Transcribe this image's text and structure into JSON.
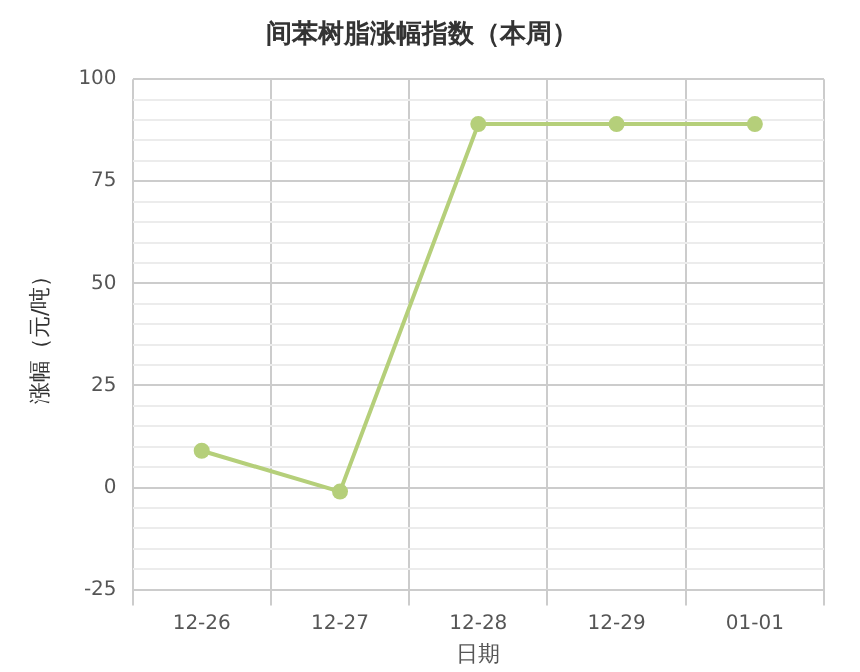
{
  "chart_data": {
    "type": "line",
    "title": "间苯树脂涨幅指数（本周）",
    "xlabel": "日期",
    "ylabel": "涨幅（元/吨）",
    "categories": [
      "12-26",
      "12-27",
      "12-28",
      "12-29",
      "01-01"
    ],
    "series": [
      {
        "color": "#b5cf7a",
        "values": [
          9,
          -1,
          89,
          89,
          89
        ]
      }
    ],
    "ylim": [
      -25,
      100
    ],
    "yticks": [
      -25,
      {
        "value": -20,
        "label": null
      },
      {
        "value": -15,
        "label": null
      },
      {
        "value": -10,
        "label": null
      },
      {
        "value": -5,
        "label": null
      },
      0,
      {
        "value": 5,
        "label": null
      },
      {
        "value": 10,
        "label": null
      },
      {
        "value": 15,
        "label": null
      },
      {
        "value": 20,
        "label": null
      },
      25,
      {
        "value": 30,
        "label": null
      },
      {
        "value": 35,
        "label": null
      },
      {
        "value": 40,
        "label": null
      },
      {
        "value": 45,
        "label": null
      },
      50,
      {
        "value": 55,
        "label": null
      },
      {
        "value": 60,
        "label": null
      },
      {
        "value": 65,
        "label": null
      },
      {
        "value": 70,
        "label": null
      },
      75,
      {
        "value": 80,
        "label": null
      },
      {
        "value": 85,
        "label": null
      },
      {
        "value": 90,
        "label": null
      },
      {
        "value": 95,
        "label": null
      },
      100
    ],
    "grid": true,
    "legend": false,
    "marker": "circle",
    "line_style": "solid"
  }
}
